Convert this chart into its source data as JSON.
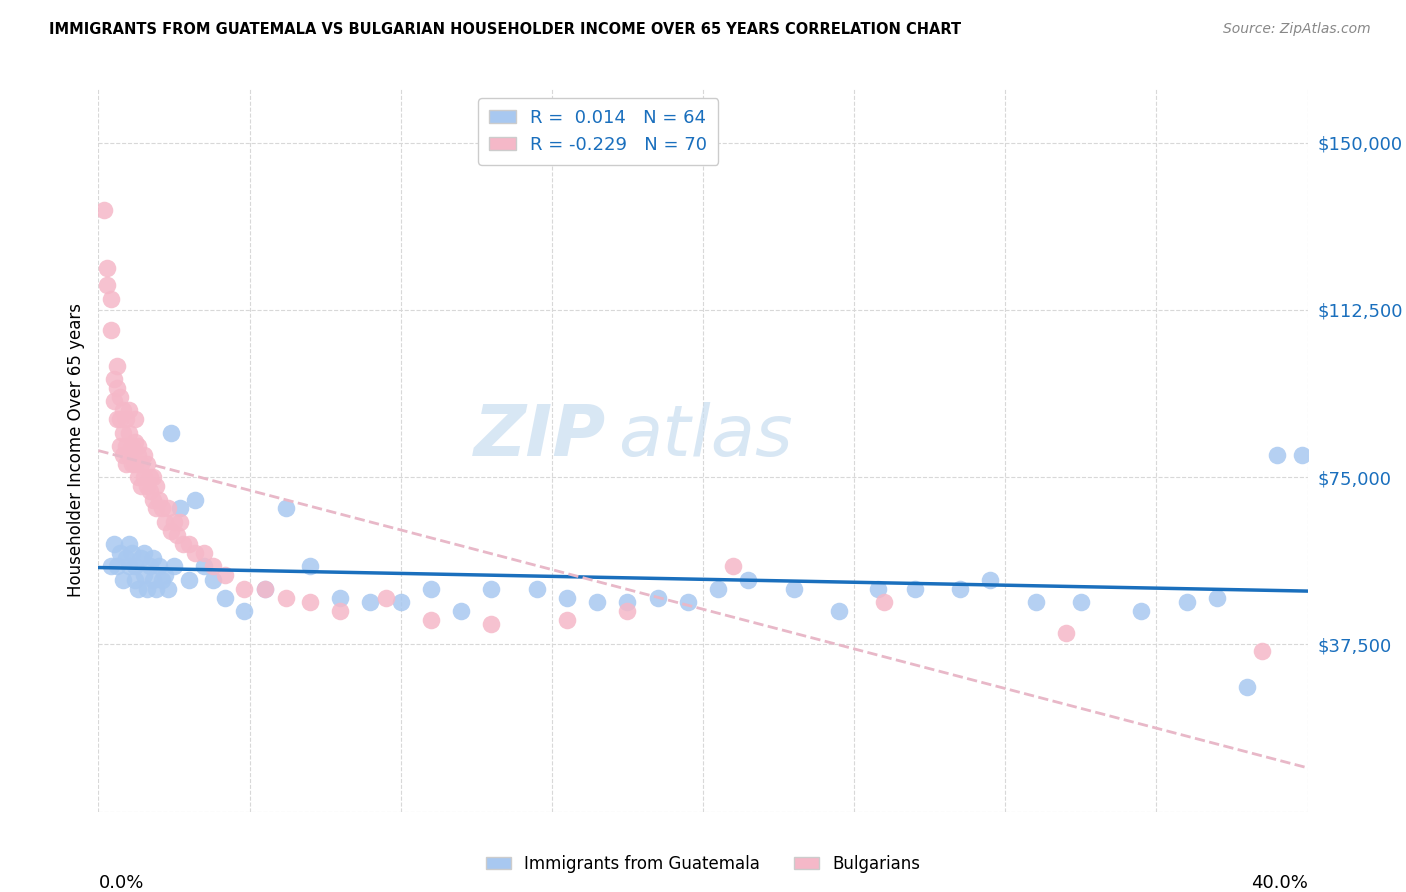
{
  "title": "IMMIGRANTS FROM GUATEMALA VS BULGARIAN HOUSEHOLDER INCOME OVER 65 YEARS CORRELATION CHART",
  "source": "Source: ZipAtlas.com",
  "ylabel": "Householder Income Over 65 years",
  "ytick_labels": [
    "",
    "$37,500",
    "$75,000",
    "$112,500",
    "$150,000"
  ],
  "yticks": [
    0,
    37500,
    75000,
    112500,
    150000
  ],
  "xlim": [
    0.0,
    0.4
  ],
  "ylim": [
    0,
    162000
  ],
  "r_guatemala": 0.014,
  "n_guatemala": 64,
  "r_bulgarian": -0.229,
  "n_bulgarian": 70,
  "color_guatemala": "#a8c8f0",
  "color_bulgarian": "#f5b8c8",
  "line_color_guatemala": "#1a6fbd",
  "trendline_color_bulgarian": "#e8b8c8",
  "watermark_zip": "ZIP",
  "watermark_atlas": "atlas",
  "legend_label_guat": "R =  0.014   N = 64",
  "legend_label_bulg": "R = -0.229   N = 70",
  "bottom_label_guat": "Immigrants from Guatemala",
  "bottom_label_bulg": "Bulgarians",
  "guatemala_x": [
    0.004,
    0.005,
    0.006,
    0.007,
    0.008,
    0.009,
    0.01,
    0.01,
    0.011,
    0.012,
    0.012,
    0.013,
    0.014,
    0.015,
    0.015,
    0.016,
    0.017,
    0.018,
    0.018,
    0.019,
    0.02,
    0.021,
    0.022,
    0.023,
    0.024,
    0.025,
    0.027,
    0.03,
    0.032,
    0.035,
    0.038,
    0.042,
    0.048,
    0.055,
    0.062,
    0.07,
    0.08,
    0.09,
    0.1,
    0.11,
    0.12,
    0.13,
    0.145,
    0.155,
    0.165,
    0.175,
    0.185,
    0.195,
    0.205,
    0.215,
    0.23,
    0.245,
    0.258,
    0.27,
    0.285,
    0.295,
    0.31,
    0.325,
    0.345,
    0.36,
    0.37,
    0.38,
    0.39,
    0.398
  ],
  "guatemala_y": [
    55000,
    60000,
    55000,
    58000,
    52000,
    57000,
    60000,
    55000,
    58000,
    52000,
    55000,
    50000,
    57000,
    53000,
    58000,
    50000,
    55000,
    52000,
    57000,
    50000,
    55000,
    52000,
    53000,
    50000,
    85000,
    55000,
    68000,
    52000,
    70000,
    55000,
    52000,
    48000,
    45000,
    50000,
    68000,
    55000,
    48000,
    47000,
    47000,
    50000,
    45000,
    50000,
    50000,
    48000,
    47000,
    47000,
    48000,
    47000,
    50000,
    52000,
    50000,
    45000,
    50000,
    50000,
    50000,
    52000,
    47000,
    47000,
    45000,
    47000,
    48000,
    28000,
    80000,
    80000
  ],
  "bulgarian_x": [
    0.002,
    0.003,
    0.003,
    0.004,
    0.004,
    0.005,
    0.005,
    0.006,
    0.006,
    0.006,
    0.007,
    0.007,
    0.007,
    0.008,
    0.008,
    0.008,
    0.009,
    0.009,
    0.009,
    0.01,
    0.01,
    0.01,
    0.011,
    0.011,
    0.012,
    0.012,
    0.012,
    0.013,
    0.013,
    0.013,
    0.014,
    0.014,
    0.015,
    0.015,
    0.016,
    0.016,
    0.017,
    0.017,
    0.018,
    0.018,
    0.019,
    0.019,
    0.02,
    0.021,
    0.022,
    0.023,
    0.024,
    0.025,
    0.026,
    0.027,
    0.028,
    0.03,
    0.032,
    0.035,
    0.038,
    0.042,
    0.048,
    0.055,
    0.062,
    0.07,
    0.08,
    0.095,
    0.11,
    0.13,
    0.155,
    0.175,
    0.21,
    0.26,
    0.32,
    0.385
  ],
  "bulgarian_y": [
    135000,
    122000,
    118000,
    108000,
    115000,
    92000,
    97000,
    88000,
    95000,
    100000,
    82000,
    88000,
    93000,
    85000,
    90000,
    80000,
    82000,
    88000,
    78000,
    85000,
    80000,
    90000,
    82000,
    78000,
    83000,
    78000,
    88000,
    80000,
    75000,
    82000,
    78000,
    73000,
    80000,
    75000,
    73000,
    78000,
    72000,
    75000,
    70000,
    75000,
    68000,
    73000,
    70000,
    68000,
    65000,
    68000,
    63000,
    65000,
    62000,
    65000,
    60000,
    60000,
    58000,
    58000,
    55000,
    53000,
    50000,
    50000,
    48000,
    47000,
    45000,
    48000,
    43000,
    42000,
    43000,
    45000,
    55000,
    47000,
    40000,
    36000
  ]
}
